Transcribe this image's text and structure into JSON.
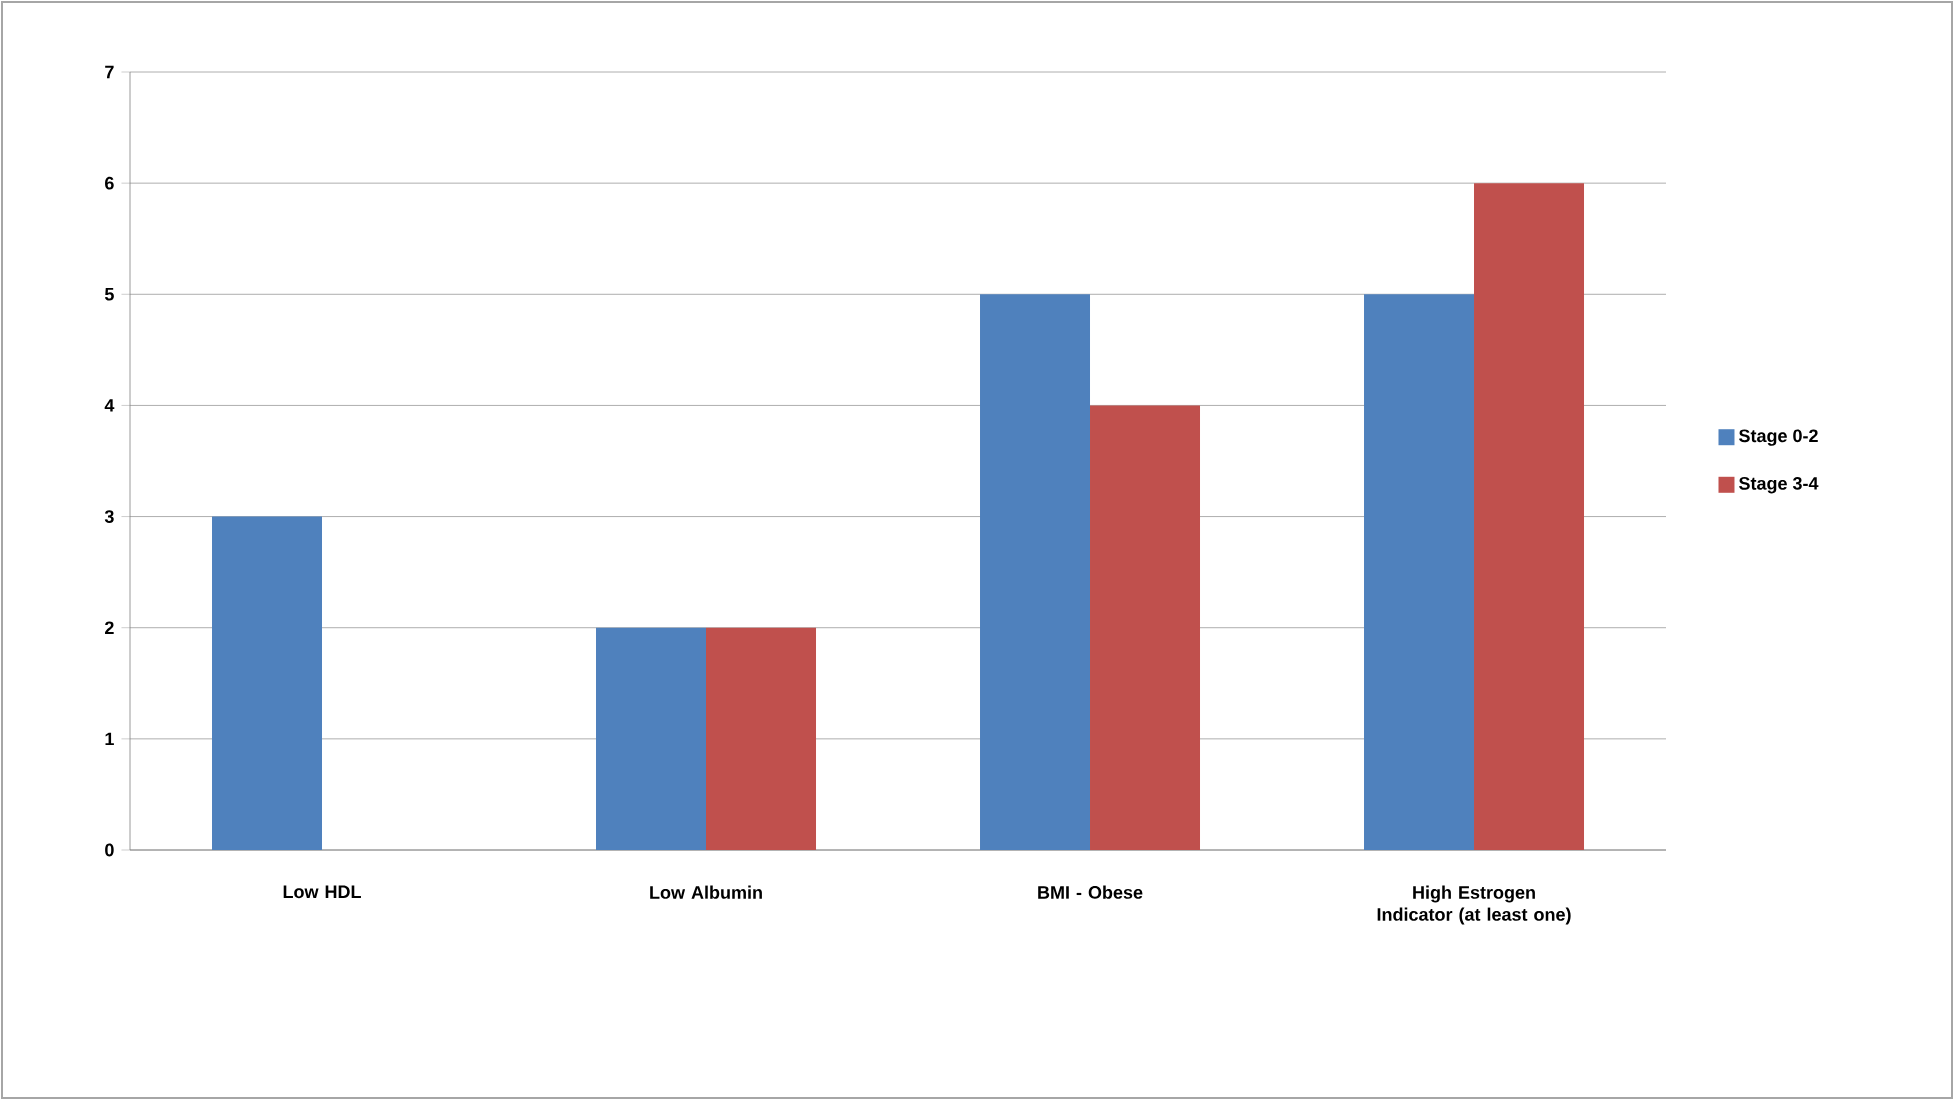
{
  "chart_data": {
    "type": "bar",
    "categories": [
      "Low HDL",
      "Low Albumin",
      "BMI - Obese",
      "High Estrogen Indicator (at least one)"
    ],
    "series": [
      {
        "name": "Stage 0-2",
        "color": "#4f81bd",
        "values": [
          3,
          2,
          5,
          5
        ]
      },
      {
        "name": "Stage 3-4",
        "color": "#c0504d",
        "values": [
          0,
          2,
          4,
          6
        ]
      }
    ],
    "ylim": [
      0,
      7
    ],
    "yticks": [
      0,
      1,
      2,
      3,
      4,
      5,
      6,
      7
    ],
    "grid": "y",
    "legend": "right"
  }
}
